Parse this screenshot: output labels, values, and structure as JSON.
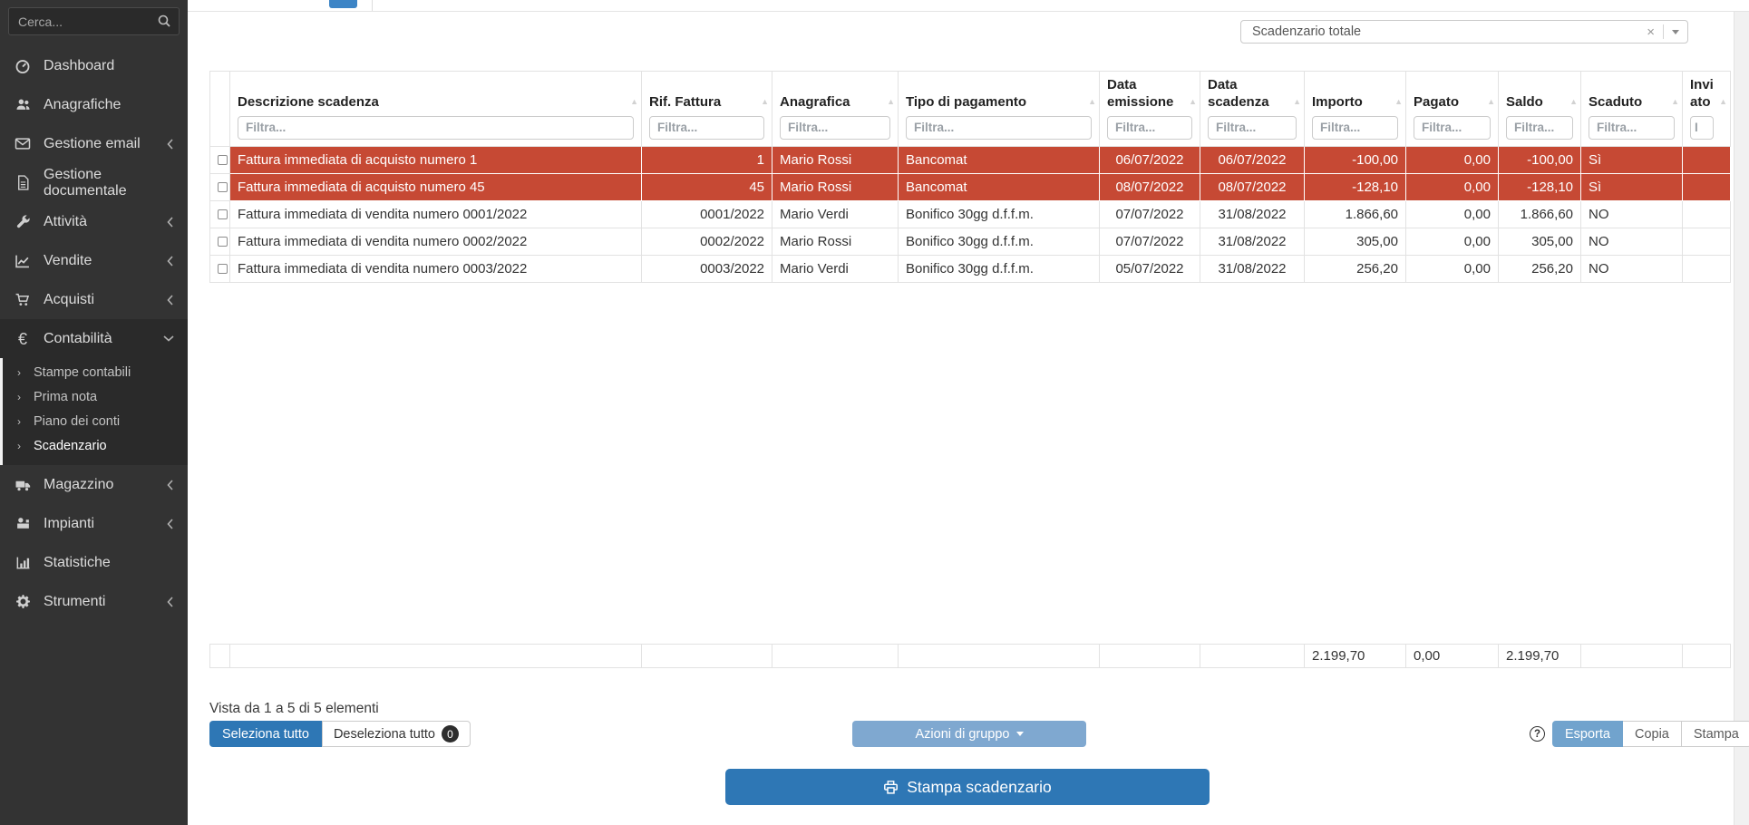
{
  "sidebar": {
    "search_placeholder": "Cerca...",
    "items": [
      {
        "label": "Dashboard",
        "icon": "gauge"
      },
      {
        "label": "Anagrafiche",
        "icon": "users"
      },
      {
        "label": "Gestione email",
        "icon": "envelope",
        "chevron": "left"
      },
      {
        "label": "Gestione documentale",
        "icon": "document"
      },
      {
        "label": "Attività",
        "icon": "wrench",
        "chevron": "left"
      },
      {
        "label": "Vendite",
        "icon": "chart",
        "chevron": "left"
      },
      {
        "label": "Acquisti",
        "icon": "cart",
        "chevron": "left"
      },
      {
        "label": "Contabilità",
        "icon": "euro",
        "chevron": "down",
        "expanded": true,
        "children": [
          "Stampe contabili",
          "Prima nota",
          "Piano dei conti",
          "Scadenzario"
        ],
        "active_child": "Scadenzario"
      },
      {
        "label": "Magazzino",
        "icon": "truck",
        "chevron": "left"
      },
      {
        "label": "Impianti",
        "icon": "machine",
        "chevron": "left"
      },
      {
        "label": "Statistiche",
        "icon": "bars"
      },
      {
        "label": "Strumenti",
        "icon": "gear",
        "chevron": "left"
      }
    ]
  },
  "toolbar": {
    "selected_view": "Scadenzario totale"
  },
  "table": {
    "columns": [
      {
        "key": "check",
        "label": "",
        "filter": ""
      },
      {
        "key": "desc",
        "label": "Descrizione scadenza",
        "filter": "Filtra..."
      },
      {
        "key": "rif",
        "label": "Rif. Fattura",
        "filter": "Filtra..."
      },
      {
        "key": "anagrafica",
        "label": "Anagrafica",
        "filter": "Filtra..."
      },
      {
        "key": "tipo",
        "label": "Tipo di pagamento",
        "filter": "Filtra..."
      },
      {
        "key": "emissione",
        "label": "Data emissione",
        "filter": "Filtra..."
      },
      {
        "key": "scadenza",
        "label": "Data scadenza",
        "filter": "Filtra..."
      },
      {
        "key": "importo",
        "label": "Importo",
        "filter": "Filtra..."
      },
      {
        "key": "pagato",
        "label": "Pagato",
        "filter": "Filtra..."
      },
      {
        "key": "saldo",
        "label": "Saldo",
        "filter": "Filtra..."
      },
      {
        "key": "scaduto",
        "label": "Scaduto",
        "filter": "Filtra..."
      },
      {
        "key": "inviato",
        "label": "Inviato",
        "filter": "I"
      }
    ],
    "rows": [
      {
        "desc": "Fattura immediata di acquisto numero 1",
        "rif": "1",
        "anagrafica": "Mario Rossi",
        "tipo": "Bancomat",
        "emissione": "06/07/2022",
        "scadenza": "06/07/2022",
        "importo": "-100,00",
        "pagato": "0,00",
        "saldo": "-100,00",
        "scaduto": "Sì",
        "inviato": ""
      },
      {
        "desc": "Fattura immediata di acquisto numero 45",
        "rif": "45",
        "anagrafica": "Mario Rossi",
        "tipo": "Bancomat",
        "emissione": "08/07/2022",
        "scadenza": "08/07/2022",
        "importo": "-128,10",
        "pagato": "0,00",
        "saldo": "-128,10",
        "scaduto": "Sì",
        "inviato": ""
      },
      {
        "desc": "Fattura immediata di vendita numero 0001/2022",
        "rif": "0001/2022",
        "anagrafica": "Mario Verdi",
        "tipo": "Bonifico 30gg d.f.f.m.",
        "emissione": "07/07/2022",
        "scadenza": "31/08/2022",
        "importo": "1.866,60",
        "pagato": "0,00",
        "saldo": "1.866,60",
        "scaduto": "NO",
        "inviato": ""
      },
      {
        "desc": "Fattura immediata di vendita numero 0002/2022",
        "rif": "0002/2022",
        "anagrafica": "Mario Rossi",
        "tipo": "Bonifico 30gg d.f.f.m.",
        "emissione": "07/07/2022",
        "scadenza": "31/08/2022",
        "importo": "305,00",
        "pagato": "0,00",
        "saldo": "305,00",
        "scaduto": "NO",
        "inviato": ""
      },
      {
        "desc": "Fattura immediata di vendita numero 0003/2022",
        "rif": "0003/2022",
        "anagrafica": "Mario Verdi",
        "tipo": "Bonifico 30gg d.f.f.m.",
        "emissione": "05/07/2022",
        "scadenza": "31/08/2022",
        "importo": "256,20",
        "pagato": "0,00",
        "saldo": "256,20",
        "scaduto": "NO",
        "inviato": ""
      }
    ],
    "totals": {
      "importo": "2.199,70",
      "pagato": "0,00",
      "saldo": "2.199,70"
    },
    "summary": "Vista da 1 a 5 di 5 elementi"
  },
  "actions": {
    "select_all": "Seleziona tutto",
    "deselect_all": "Deseleziona tutto",
    "deselect_count": "0",
    "group_actions": "Azioni di gruppo",
    "help": "?",
    "export": "Esporta",
    "copy": "Copia",
    "print": "Stampa",
    "print_schedule": "Stampa scadenzario",
    "clear_icon": "×"
  },
  "colors": {
    "accent_blue": "#2e77b5",
    "light_blue": "#7fa8d0",
    "overdue_red": "#c64934",
    "sidebar_bg": "#333333"
  }
}
